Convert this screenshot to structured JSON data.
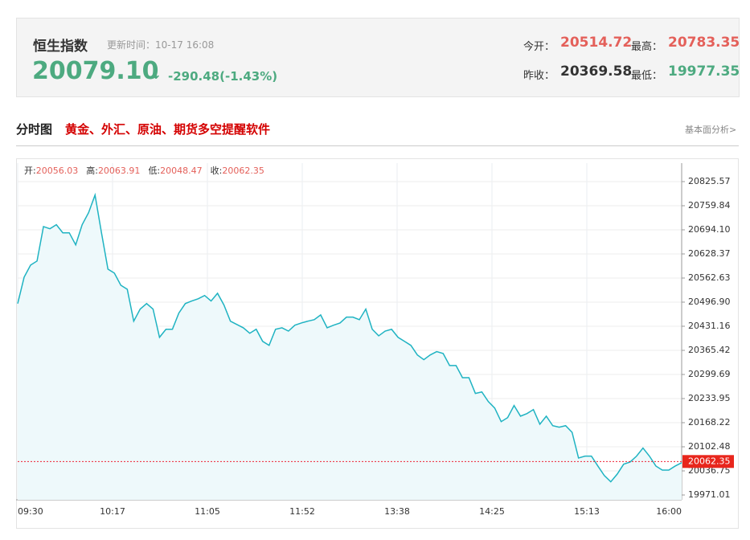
{
  "header": {
    "title": "恒生指数",
    "update_label": "更新时间：",
    "update_time": "10-17 16:08",
    "price": "20079.10",
    "arrow": "↓",
    "change": "-290.48(-1.43%)",
    "open_label": "今开：",
    "open": "20514.72",
    "high_label": "最高：",
    "high": "20783.35",
    "prev_label": "昨收：",
    "prev": "20369.58",
    "low_label": "最低：",
    "low": "19977.35"
  },
  "section": {
    "title": "分时图",
    "promo": "黄金、外汇、原油、期货多空提醒软件",
    "link": "基本面分析>"
  },
  "chart_data": {
    "type": "line",
    "info": [
      {
        "label": "开:",
        "value": 20056.03
      },
      {
        "label": "高:",
        "value": 20063.91
      },
      {
        "label": "低:",
        "value": 20048.47
      },
      {
        "label": "收:",
        "value": 20062.35
      }
    ],
    "time_labels": [
      "09:30",
      "10:17",
      "11:05",
      "11:52",
      "13:38",
      "14:25",
      "15:13",
      "16:00"
    ],
    "ylim": [
      19971.01,
      20825.57
    ],
    "yticks": [
      19971.01,
      20036.75,
      20102.48,
      20168.22,
      20233.95,
      20299.69,
      20365.42,
      20431.16,
      {
        "value": 20496.9,
        "label": "20496.90"
      },
      {
        "value": 20562.63,
        "label": "20562.63"
      },
      {
        "value": 20628.37,
        "label": "20628.37"
      },
      {
        "value": 20694.1,
        "label": "20694.10"
      },
      20759.84,
      20825.57
    ],
    "grid": true,
    "series": [
      {
        "color": "#1fb3c2",
        "values": [
          20493,
          20565,
          20598,
          20609,
          20703,
          20697,
          20708,
          20686,
          20686,
          20653,
          20708,
          20741,
          20789,
          20686,
          20587,
          20576,
          20543,
          20532,
          20445,
          20478,
          20493,
          20478,
          20401,
          20423,
          20423,
          20467,
          20493,
          20500,
          20506,
          20515,
          20500,
          20521,
          20489,
          20445,
          20436,
          20427,
          20412,
          20423,
          20390,
          20379,
          20423,
          20427,
          20418,
          20434,
          20440,
          20445,
          20449,
          20462,
          20427,
          20434,
          20440,
          20456,
          20456,
          20449,
          20478,
          20423,
          20405,
          20418,
          20423,
          20401,
          20390,
          20379,
          20353,
          20340,
          20353,
          20362,
          20357,
          20324,
          20324,
          20291,
          20291,
          20248,
          20252,
          20226,
          20208,
          20171,
          20182,
          20215,
          20186,
          20193,
          20204,
          20164,
          20186,
          20160,
          20156,
          20160,
          20142,
          20072,
          20077,
          20077,
          20050,
          20024,
          20007,
          20028,
          20055,
          20061,
          20077,
          20099,
          20077,
          20050,
          20039,
          20039,
          20050,
          20059
        ]
      }
    ]
  }
}
